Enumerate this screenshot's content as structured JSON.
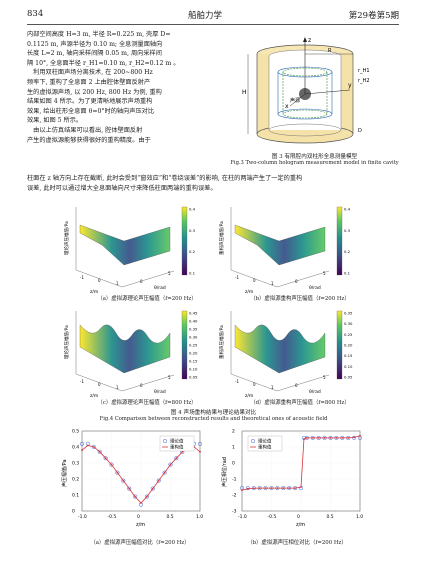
{
  "header": {
    "page_number": "834",
    "journal": "船舶力学",
    "volume": "第29卷第5期"
  },
  "body_text": {
    "left_para1": [
      "内部空间高度 H=3 m, 半径 R=0.225 m, 壳厚 D=",
      "0.1125 m, 声源半径为 0.10 m; 全息测量面轴向",
      "长度 L=2 m, 轴向采样间隔 0.05 m, 周向采样间",
      "隔 10°, 全息面半径 r_H1=0.10 m, r_H2=0.12 m 。"
    ],
    "left_para2": [
      "　利用双柱面声场分离技术, 在 200~800 Hz",
      "频率下, 重构了全息面 2 上由腔体壁面反射产",
      "生的虚拟源声场, 以 200 Hz, 800 Hz 为例, 重构",
      "结果如图 4 所示。为了更清晰地展示声场重构",
      "效果, 给出柱形全息面 θ=0°时的轴向声压对比",
      "效果, 如图 5 所示。"
    ],
    "left_para3": [
      "　由以上仿真结果可以看出, 腔体壁面反射",
      "产生的虚拟源能够获得很好的重构精度。由于",
      "柱面在 z 轴方向上存在截断, 此时会受到“窗效应”和“卷绕误差”的影响, 在柱的两端产生了一定的重构",
      "误差, 此时可以通过增大全息面轴向尺寸来降低柱面两端的重构误差。"
    ]
  },
  "fig3": {
    "caption_cn": "图 3  有限腔内双柱形全息测量模型",
    "caption_en": "Fig.3  Two-column hologram measurement model in finite cavity",
    "labels": {
      "z": "z",
      "y": "y",
      "x": "x",
      "source": "声源",
      "H": "H",
      "R": "R",
      "rH1": "r_H1",
      "rH2": "r_H2",
      "D": "D"
    }
  },
  "fig4": {
    "caption_cn": "图 4  声场重构结果与理论结果对比",
    "caption_en": "Fig.4  Comparison between reconstructed results and theoretical ones of acoustic field",
    "panels": [
      {
        "caption": "（a）虚拟源理论声压幅值（f=200 Hz）",
        "ylabel": "理论声压幅值/Pa",
        "cbar": [
          "0.4",
          "0.3",
          "0.2",
          "0.1"
        ]
      },
      {
        "caption": "（b）虚拟源重构声压幅值（f=200 Hz）",
        "ylabel": "重构声压幅值/Pa",
        "cbar": [
          "0.4",
          "0.3",
          "0.2",
          "0.1"
        ]
      },
      {
        "caption": "（c）虚拟源理论声压幅值（f=800 Hz）",
        "ylabel": "理论声压幅值/Pa",
        "cbar": [
          "0.45",
          "0.40",
          "0.35",
          "0.30",
          "0.25",
          "0.20",
          "0.15",
          "0.10",
          "0.05"
        ]
      },
      {
        "caption": "（d）虚拟源重构声压幅值（f=800 Hz）",
        "ylabel": "重构声压幅值/Pa",
        "cbar": [
          "0.35",
          "0.30",
          "0.25",
          "0.20",
          "0.15",
          "0.10",
          "0.05"
        ]
      }
    ],
    "axes": {
      "z": "z/m",
      "theta": "θ/rad",
      "z_ticks": [
        "-1",
        "0",
        "1"
      ],
      "theta_ticks": [
        "0",
        "5"
      ]
    }
  },
  "fig5": {
    "panels": [
      {
        "caption": "（a）虚拟源声压幅值对比（f=200 Hz）",
        "ylabel": "声压幅值/Pa",
        "xlabel": "z/m"
      },
      {
        "caption": "（b）虚拟源声压相位对比（f=200 Hz）",
        "ylabel": "声压相位/rad",
        "xlabel": "z/m"
      }
    ],
    "legend": {
      "theory": "理论值",
      "recon": "重构值"
    }
  },
  "chart_data": [
    {
      "type": "line",
      "title": "",
      "xlabel": "z/m",
      "ylabel": "声压幅值/Pa",
      "xlim": [
        -1.0,
        1.0
      ],
      "ylim": [
        0.0,
        0.5
      ],
      "xticks": [
        "-1.0",
        "-0.5",
        "0",
        "0.5",
        "1.0"
      ],
      "yticks": [
        "0",
        "0.1",
        "0.2",
        "0.3",
        "0.4",
        "0.5"
      ],
      "x": [
        -1.0,
        -0.9,
        -0.8,
        -0.7,
        -0.6,
        -0.5,
        -0.4,
        -0.3,
        -0.2,
        -0.1,
        0.0,
        0.1,
        0.2,
        0.3,
        0.4,
        0.5,
        0.6,
        0.7,
        0.8,
        0.9,
        1.0
      ],
      "series": [
        {
          "name": "理论值",
          "values": [
            0.42,
            0.42,
            0.4,
            0.37,
            0.33,
            0.29,
            0.24,
            0.19,
            0.14,
            0.09,
            0.04,
            0.09,
            0.14,
            0.19,
            0.24,
            0.29,
            0.33,
            0.37,
            0.4,
            0.42,
            0.42
          ]
        },
        {
          "name": "重构值",
          "values": [
            0.38,
            0.41,
            0.4,
            0.37,
            0.33,
            0.29,
            0.24,
            0.19,
            0.14,
            0.09,
            0.05,
            0.09,
            0.14,
            0.19,
            0.24,
            0.29,
            0.33,
            0.37,
            0.4,
            0.4,
            0.37
          ]
        }
      ]
    },
    {
      "type": "line",
      "title": "",
      "xlabel": "z/m",
      "ylabel": "声压相位/rad",
      "xlim": [
        -1.0,
        1.0
      ],
      "ylim": [
        -3,
        2
      ],
      "xticks": [
        "-1.0",
        "-0.5",
        "0",
        "0.5",
        "1.0"
      ],
      "yticks": [
        "-3",
        "-2",
        "-1",
        "0",
        "1",
        "2"
      ],
      "x": [
        -1.0,
        -0.9,
        -0.8,
        -0.7,
        -0.6,
        -0.5,
        -0.4,
        -0.3,
        -0.2,
        -0.1,
        0.0,
        0.05,
        0.1,
        0.2,
        0.3,
        0.4,
        0.5,
        0.6,
        0.7,
        0.8,
        0.9,
        1.0
      ],
      "series": [
        {
          "name": "理论值",
          "values": [
            -1.57,
            -1.57,
            -1.57,
            -1.57,
            -1.57,
            -1.57,
            -1.57,
            -1.57,
            -1.57,
            -1.57,
            -1.57,
            1.57,
            1.57,
            1.57,
            1.57,
            1.57,
            1.57,
            1.57,
            1.57,
            1.57,
            1.57,
            1.57
          ]
        },
        {
          "name": "重构值",
          "values": [
            -1.7,
            -1.6,
            -1.58,
            -1.57,
            -1.57,
            -1.57,
            -1.57,
            -1.57,
            -1.57,
            -1.57,
            -1.5,
            1.5,
            1.57,
            1.57,
            1.57,
            1.57,
            1.57,
            1.57,
            1.57,
            1.57,
            1.6,
            1.7
          ]
        }
      ]
    }
  ]
}
